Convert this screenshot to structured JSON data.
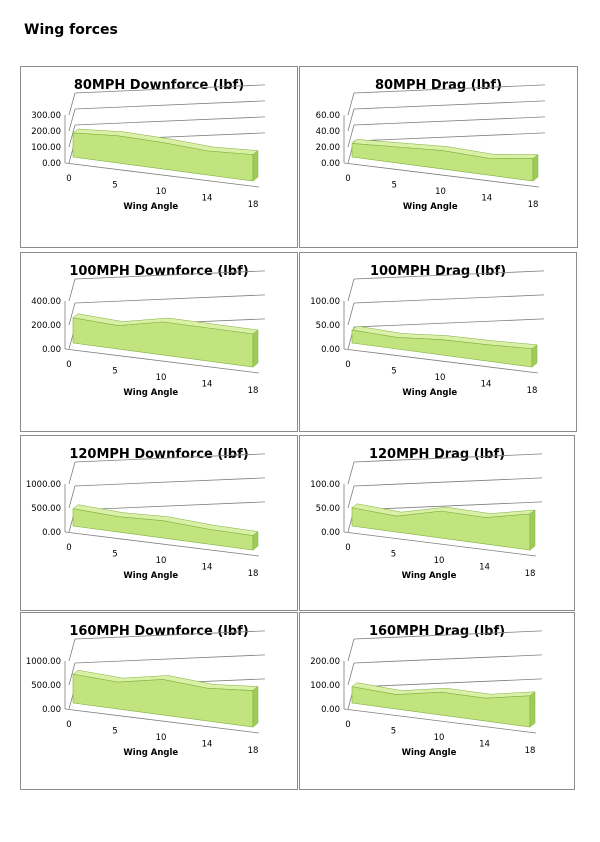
{
  "page": {
    "title": "Wing forces"
  },
  "colors": {
    "area_fill": "#c2e47e",
    "area_top": "#d9f0a6",
    "area_side": "#9fcb59",
    "area_edge": "#7fb03e",
    "axis": "#7f7f7f"
  },
  "chart_data": [
    {
      "type": "area",
      "title": "80MPH Downforce (lbf)",
      "xlabel": "Wing Angle",
      "ylabel": "",
      "categories": [
        "0",
        "5",
        "10",
        "14",
        "18"
      ],
      "values": [
        150,
        170,
        165,
        150,
        165
      ],
      "ylim": [
        0,
        300
      ],
      "yticks": [
        "300.00",
        "200.00",
        "100.00",
        "0.00"
      ],
      "grid": true,
      "legend": "none",
      "view": "3d"
    },
    {
      "type": "area",
      "title": "80MPH Drag (lbf)",
      "xlabel": "Wing Angle",
      "ylabel": "",
      "categories": [
        "0",
        "5",
        "10",
        "14",
        "18"
      ],
      "values": [
        17,
        20,
        23,
        21,
        28
      ],
      "ylim": [
        0,
        60
      ],
      "yticks": [
        "60.00",
        "40.00",
        "20.00",
        "0.00"
      ],
      "grid": true,
      "legend": "none",
      "view": "3d"
    },
    {
      "type": "area",
      "title": "100MPH Downforce (lbf)",
      "xlabel": "Wing Angle",
      "ylabel": "",
      "categories": [
        "0",
        "5",
        "10",
        "14",
        "18"
      ],
      "values": [
        210,
        195,
        275,
        275,
        275
      ],
      "ylim": [
        0,
        400
      ],
      "yticks": [
        "400.00",
        "200.00",
        "0.00"
      ],
      "grid": true,
      "legend": "none",
      "view": "3d"
    },
    {
      "type": "area",
      "title": "100MPH Drag (lbf)",
      "xlabel": "Wing Angle",
      "ylabel": "",
      "categories": [
        "0",
        "5",
        "10",
        "14",
        "18"
      ],
      "values": [
        27,
        24,
        32,
        34,
        38
      ],
      "ylim": [
        0,
        100
      ],
      "yticks": [
        "100.00",
        "50.00",
        "0.00"
      ],
      "grid": true,
      "legend": "none",
      "view": "3d"
    },
    {
      "type": "area",
      "title": "120MPH Downforce (lbf)",
      "xlabel": "Wing Angle",
      "ylabel": "",
      "categories": [
        "0",
        "5",
        "10",
        "14",
        "18"
      ],
      "values": [
        360,
        320,
        360,
        310,
        300
      ],
      "ylim": [
        0,
        1000
      ],
      "yticks": [
        "1000.00",
        "500.00",
        "0.00"
      ],
      "grid": true,
      "legend": "none",
      "view": "3d"
    },
    {
      "type": "area",
      "title": "120MPH Drag (lbf)",
      "xlabel": "Wing Angle",
      "ylabel": "",
      "categories": [
        "0",
        "5",
        "10",
        "14",
        "18"
      ],
      "values": [
        38,
        33,
        56,
        55,
        75
      ],
      "ylim": [
        0,
        100
      ],
      "yticks": [
        "100.00",
        "50.00",
        "0.00"
      ],
      "grid": true,
      "legend": "none",
      "view": "3d"
    },
    {
      "type": "area",
      "title": "160MPH Downforce (lbf)",
      "xlabel": "Wing Angle",
      "ylabel": "",
      "categories": [
        "0",
        "5",
        "10",
        "14",
        "18"
      ],
      "values": [
        600,
        560,
        740,
        680,
        760
      ],
      "ylim": [
        0,
        1000
      ],
      "yticks": [
        "1000.00",
        "500.00",
        "0.00"
      ],
      "grid": true,
      "legend": "none",
      "view": "3d"
    },
    {
      "type": "area",
      "title": "160MPH Drag (lbf)",
      "xlabel": "Wing Angle",
      "ylabel": "",
      "categories": [
        "0",
        "5",
        "10",
        "14",
        "18"
      ],
      "values": [
        68,
        60,
        95,
        95,
        130
      ],
      "ylim": [
        0,
        200
      ],
      "yticks": [
        "200.00",
        "100.00",
        "0.00"
      ],
      "grid": true,
      "legend": "none",
      "view": "3d"
    }
  ]
}
